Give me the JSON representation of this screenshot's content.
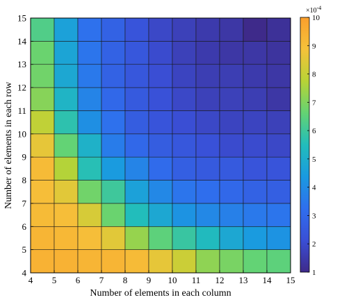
{
  "chart_data": {
    "type": "heatmap",
    "xlabel": "Number of elements in each column",
    "ylabel": "Number of elements in each row",
    "x_ticks": [
      4,
      5,
      6,
      7,
      8,
      9,
      10,
      11,
      12,
      13,
      14,
      15
    ],
    "y_ticks": [
      4,
      5,
      6,
      7,
      8,
      9,
      10,
      11,
      12,
      13,
      14,
      15
    ],
    "xlim": [
      4,
      15
    ],
    "ylim": [
      4,
      15
    ],
    "colorbar": {
      "min": 1,
      "max": 10,
      "ticks": [
        1,
        2,
        3,
        4,
        5,
        6,
        7,
        8,
        9,
        10
      ],
      "multiplier": "×10",
      "exponent": "-4",
      "colormap": "parula"
    },
    "cell_note": "rows listed from row 4 (bottom) to row 14 (top); columns 4..14 left to right; values in units of 1e-4",
    "values": [
      [
        9.4,
        9.4,
        9.3,
        9.3,
        9.1,
        8.6,
        8.1,
        7.2,
        6.9,
        6.6,
        6.5
      ],
      [
        9.3,
        9.2,
        9.0,
        8.5,
        7.3,
        6.5,
        5.9,
        5.4,
        4.8,
        4.4,
        4.2
      ],
      [
        9.1,
        9.0,
        8.3,
        6.7,
        5.5,
        4.8,
        4.2,
        3.9,
        3.7,
        3.5,
        3.4
      ],
      [
        9.0,
        8.5,
        6.8,
        6.0,
        4.6,
        3.9,
        3.4,
        3.2,
        3.0,
        2.8,
        2.7
      ],
      [
        9.1,
        7.7,
        5.6,
        4.4,
        3.8,
        3.1,
        2.7,
        2.5,
        2.5,
        2.3,
        2.3
      ],
      [
        8.6,
        6.6,
        5.1,
        3.6,
        3.0,
        2.6,
        2.4,
        2.2,
        2.0,
        2.0,
        1.9
      ],
      [
        7.9,
        5.7,
        4.1,
        3.3,
        2.6,
        2.3,
        2.1,
        1.9,
        1.8,
        1.8,
        1.7
      ],
      [
        7.1,
        5.2,
        3.8,
        3.0,
        2.5,
        2.2,
        1.9,
        1.7,
        1.7,
        1.6,
        1.4
      ],
      [
        6.8,
        4.8,
        3.5,
        2.8,
        2.4,
        2.1,
        1.8,
        1.6,
        1.6,
        1.5,
        1.4
      ],
      [
        6.7,
        4.7,
        3.4,
        2.8,
        2.4,
        2.0,
        1.7,
        1.5,
        1.4,
        1.4,
        1.3
      ],
      [
        6.3,
        4.6,
        3.3,
        2.8,
        2.3,
        1.9,
        1.7,
        1.5,
        1.4,
        1.0,
        1.2
      ]
    ]
  }
}
